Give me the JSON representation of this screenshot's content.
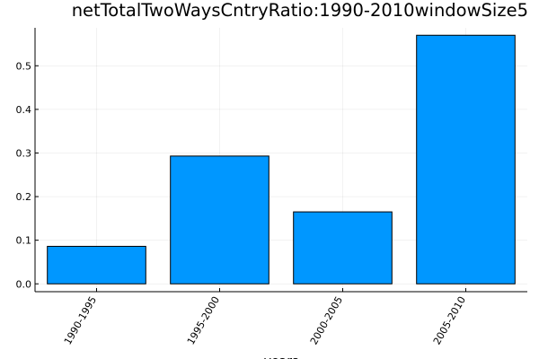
{
  "chart_data": {
    "type": "bar",
    "title": "netTotalTwoWaysCntryRatio:1990-2010windowSize5",
    "xlabel": "years",
    "ylabel": "",
    "categories": [
      "1990-1995",
      "1995-2000",
      "2000-2005",
      "2005-2010"
    ],
    "values": [
      0.086,
      0.293,
      0.165,
      0.57
    ],
    "ylim": [
      -0.018,
      0.587
    ],
    "yticks": [
      0.0,
      0.1,
      0.2,
      0.3,
      0.4,
      0.5
    ],
    "ytick_labels": [
      "0.0",
      "0.1",
      "0.2",
      "0.3",
      "0.4",
      "0.5"
    ],
    "bar_color": "#0097ff",
    "grid": true,
    "legend": "none"
  }
}
